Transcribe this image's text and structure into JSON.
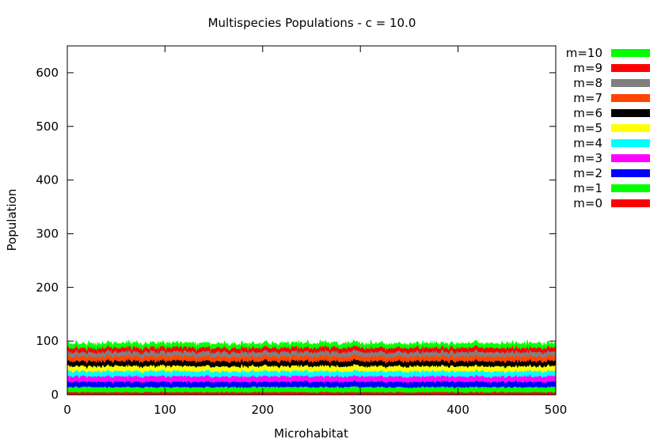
{
  "chart_data": {
    "type": "area",
    "title": "Multispecies Populations - c = 10.0",
    "xlabel": "Microhabitat",
    "ylabel": "Population",
    "xlim": [
      0,
      500
    ],
    "ylim": [
      0,
      650
    ],
    "xticks": [
      0,
      100,
      200,
      300,
      400,
      500
    ],
    "yticks": [
      0,
      100,
      200,
      300,
      400,
      500,
      600
    ],
    "grid": false,
    "legend_position": "outside-top-right",
    "stacked": true,
    "x": {
      "start": 0,
      "end": 500,
      "step": 1
    },
    "series": [
      {
        "name": "m=0",
        "color": "#ff0000",
        "mean": 5,
        "noise": 1.2
      },
      {
        "name": "m=1",
        "color": "#00ff00",
        "mean": 9.7,
        "noise": 1.2
      },
      {
        "name": "m=2",
        "color": "#0000ff",
        "mean": 10,
        "noise": 1.3
      },
      {
        "name": "m=3",
        "color": "#ff00ff",
        "mean": 10,
        "noise": 1.3
      },
      {
        "name": "m=4",
        "color": "#00ffff",
        "mean": 9.7,
        "noise": 1.3
      },
      {
        "name": "m=5",
        "color": "#ffff00",
        "mean": 9.4,
        "noise": 1.3
      },
      {
        "name": "m=6",
        "color": "#000000",
        "mean": 9.4,
        "noise": 1.3
      },
      {
        "name": "m=7",
        "color": "#ff4500",
        "mean": 9,
        "noise": 1.3
      },
      {
        "name": "m=8",
        "color": "#808080",
        "mean": 8.2,
        "noise": 1.3
      },
      {
        "name": "m=9",
        "color": "#ff0000",
        "mean": 7.9,
        "noise": 1.3
      },
      {
        "name": "m=10",
        "color": "#00ff00",
        "mean": 7.5,
        "noise": 1.5
      }
    ],
    "legend_order": [
      "m=10",
      "m=9",
      "m=8",
      "m=7",
      "m=6",
      "m=5",
      "m=4",
      "m=3",
      "m=2",
      "m=1",
      "m=0"
    ]
  }
}
